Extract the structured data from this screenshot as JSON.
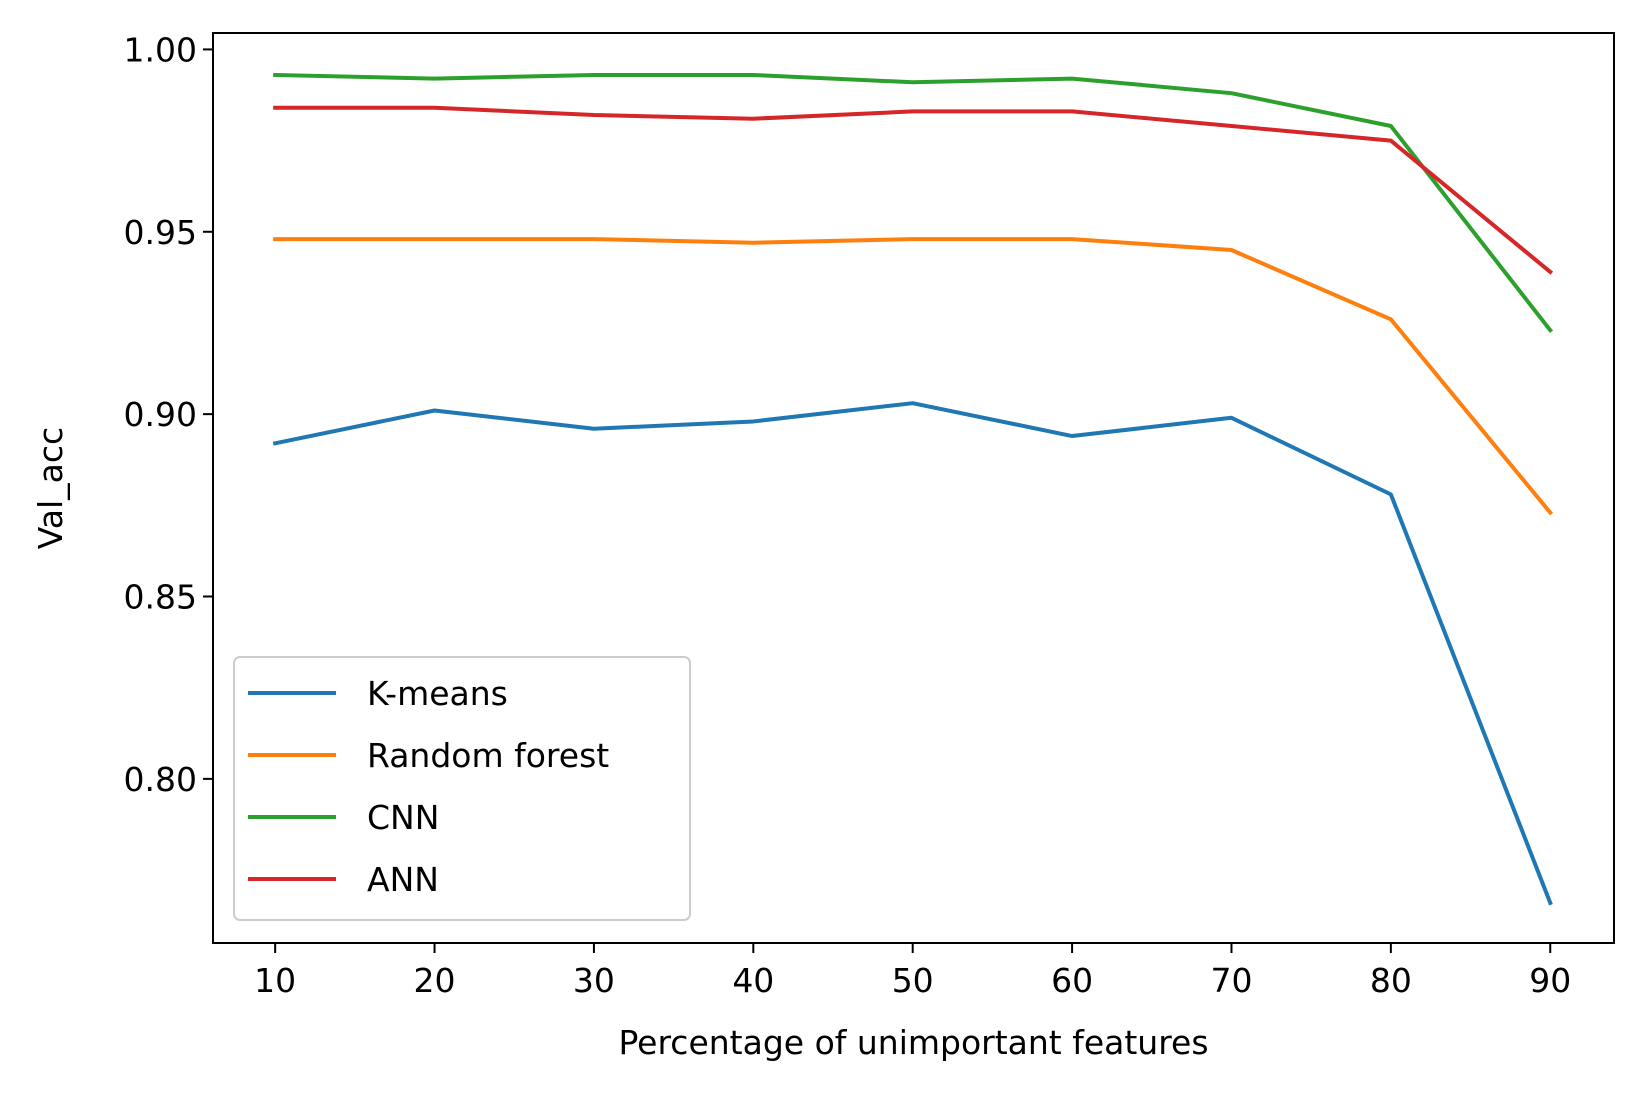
{
  "chart_data": {
    "type": "line",
    "title": "",
    "xlabel": "Percentage of unimportant features",
    "ylabel": "Val_acc",
    "x": [
      10,
      20,
      30,
      40,
      50,
      60,
      70,
      80,
      90
    ],
    "xlim": [
      6.1,
      94.0
    ],
    "ylim": [
      0.755,
      1.0045
    ],
    "xticks": [
      10,
      20,
      30,
      40,
      50,
      60,
      70,
      80,
      90
    ],
    "xtick_labels": [
      "10",
      "20",
      "30",
      "40",
      "50",
      "60",
      "70",
      "80",
      "90"
    ],
    "yticks": [
      0.8,
      0.85,
      0.9,
      0.95,
      1.0
    ],
    "ytick_labels": [
      "0.80",
      "0.85",
      "0.90",
      "0.95",
      "1.00"
    ],
    "grid": false,
    "legend_position": "lower-left",
    "series": [
      {
        "name": "K-means",
        "color": "#1f77b4",
        "values": [
          0.892,
          0.901,
          0.896,
          0.898,
          0.903,
          0.894,
          0.899,
          0.878,
          0.766
        ]
      },
      {
        "name": "Random forest",
        "color": "#ff7f0e",
        "values": [
          0.948,
          0.948,
          0.948,
          0.947,
          0.948,
          0.948,
          0.945,
          0.926,
          0.873
        ]
      },
      {
        "name": "CNN",
        "color": "#2ca02c",
        "values": [
          0.993,
          0.992,
          0.993,
          0.993,
          0.991,
          0.992,
          0.988,
          0.979,
          0.923
        ]
      },
      {
        "name": "ANN",
        "color": "#d62728",
        "values": [
          0.984,
          0.984,
          0.982,
          0.981,
          0.983,
          0.983,
          0.979,
          0.975,
          0.939
        ]
      }
    ]
  }
}
